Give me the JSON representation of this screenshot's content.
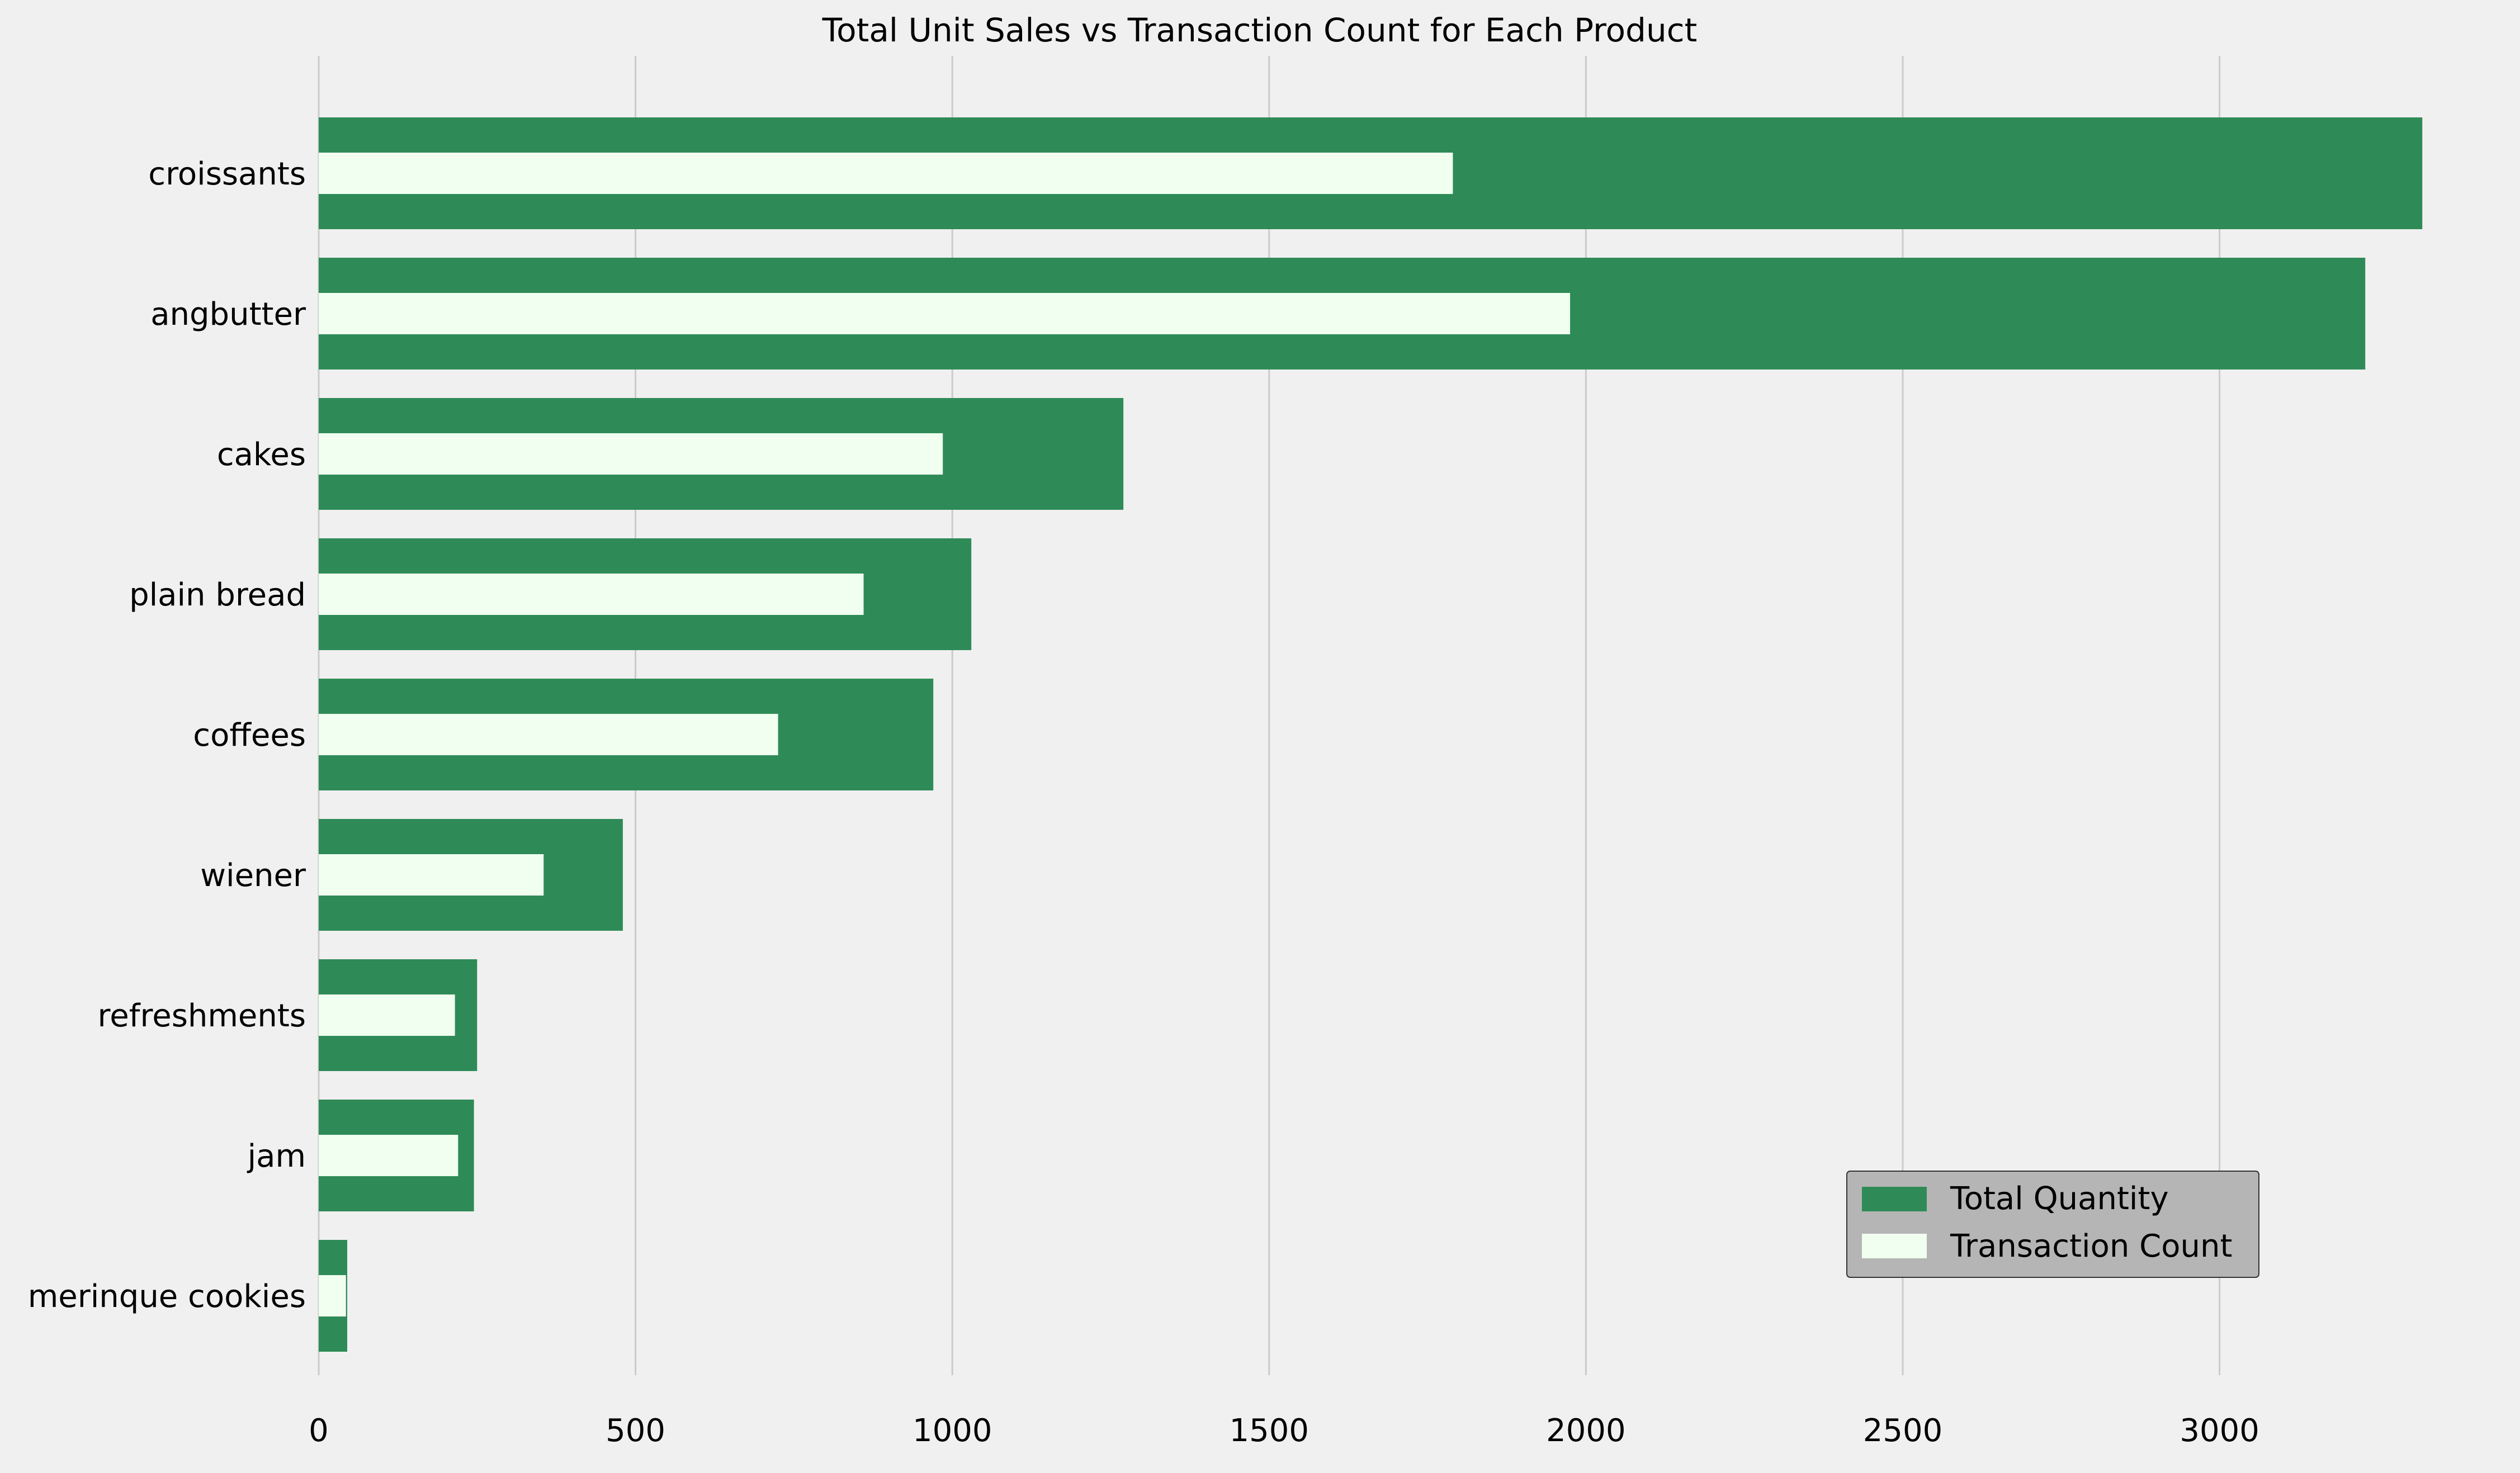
{
  "chart_data": {
    "type": "bar",
    "orientation": "horizontal",
    "title": "Total Unit Sales vs Transaction Count for Each Product",
    "xlabel": "",
    "ylabel": "",
    "categories": [
      "croissants",
      "angbutter",
      "cakes",
      "plain bread",
      "coffees",
      "wiener",
      "refreshments",
      "jam",
      "merinque cookies"
    ],
    "series": [
      {
        "name": "Total Quantity",
        "color": "#2e8b57",
        "values": [
          3320,
          3230,
          1270,
          1030,
          970,
          480,
          250,
          245,
          45
        ]
      },
      {
        "name": "Transaction Count",
        "color": "#f0fff0",
        "values": [
          1790,
          1975,
          985,
          860,
          725,
          355,
          215,
          220,
          43
        ]
      }
    ],
    "xlim": [
      0,
      3400
    ],
    "xticks": [
      0,
      500,
      1000,
      1500,
      2000,
      2500,
      3000
    ],
    "xtick_labels": [
      "0",
      "500",
      "1000",
      "1500",
      "2000",
      "2500",
      "3000"
    ],
    "grid": "vertical",
    "legend_position": "lower-right",
    "background_color": "#f0f0f0",
    "grid_color": "#cbcbcb"
  }
}
